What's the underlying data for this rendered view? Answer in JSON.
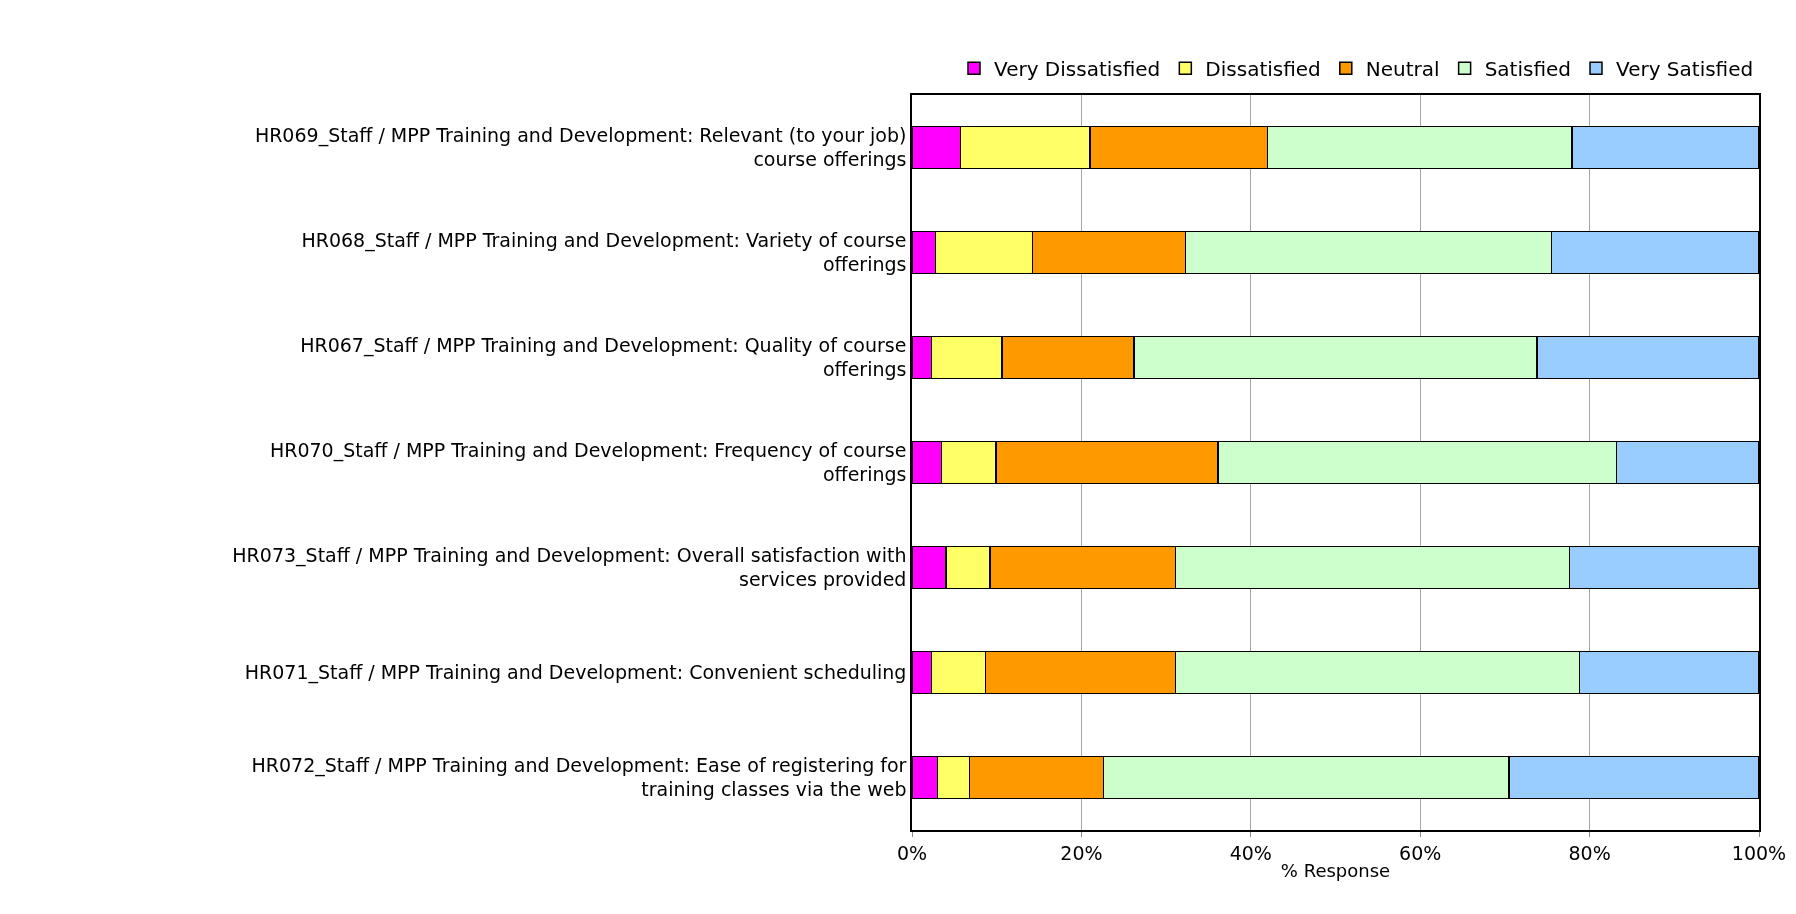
{
  "chart_data": {
    "type": "bar",
    "orientation": "horizontal",
    "stacked": true,
    "xlabel": "% Response",
    "categories": [
      "HR069_Staff / MPP Training and Development: Relevant (to your job) course offerings",
      "HR068_Staff / MPP Training and Development: Variety of course offerings",
      "HR067_Staff / MPP Training and Development: Quality of course offerings",
      "HR070_Staff / MPP Training and Development: Frequency of course offerings",
      "HR073_Staff / MPP Training and Development: Overall satisfaction with services provided",
      "HR071_Staff / MPP Training and Development: Convenient scheduling",
      "HR072_Staff / MPP Training and Development: Ease of registering for training classes via the web"
    ],
    "series": [
      {
        "name": "Very Dissatisfied",
        "color": "#ff00ff",
        "values": [
          5.7,
          2.8,
          2.3,
          3.5,
          4.0,
          2.3,
          3.0
        ]
      },
      {
        "name": "Dissatisfied",
        "color": "#ffff66",
        "values": [
          15.3,
          11.4,
          8.3,
          6.4,
          5.2,
          6.4,
          3.8
        ]
      },
      {
        "name": "Neutral",
        "color": "#ff9900",
        "values": [
          21.0,
          18.1,
          15.6,
          26.2,
          21.9,
          22.4,
          15.8
        ]
      },
      {
        "name": "Satisfied",
        "color": "#ccffcc",
        "values": [
          35.9,
          43.2,
          47.6,
          47.1,
          46.5,
          47.7,
          47.9
        ]
      },
      {
        "name": "Very Satisfied",
        "color": "#99ccff",
        "values": [
          22.1,
          24.5,
          26.2,
          16.8,
          22.4,
          21.2,
          29.5
        ]
      }
    ],
    "xlim": [
      0,
      100
    ],
    "xticks": [
      {
        "value": 0,
        "label": "0%"
      },
      {
        "value": 20,
        "label": "20%"
      },
      {
        "value": 40,
        "label": "40%"
      },
      {
        "value": 60,
        "label": "60%"
      },
      {
        "value": 80,
        "label": "80%"
      },
      {
        "value": 100,
        "label": "100%"
      }
    ],
    "grid": "x",
    "legend": "top right"
  }
}
